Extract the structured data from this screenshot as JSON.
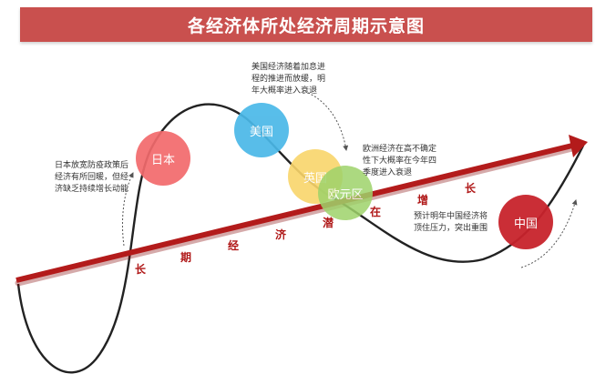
{
  "title": "各经济体所处经济周期示意图",
  "axis_label_chars": [
    "长",
    "期",
    "经",
    "济",
    "潜",
    "在",
    "增",
    "长"
  ],
  "economies": [
    {
      "id": "japan",
      "label": "日本",
      "color": "#f26a6c"
    },
    {
      "id": "usa",
      "label": "美国",
      "color": "#4ab8e8"
    },
    {
      "id": "uk",
      "label": "英国",
      "color": "#f9d56b"
    },
    {
      "id": "eurozone",
      "label": "欧元区",
      "color": "#9ed36a"
    },
    {
      "id": "china",
      "label": "中国",
      "color": "#c8232c"
    }
  ],
  "notes": {
    "japan": "日本放宽防疫政策后\n经济有所回暖，但经\n济缺乏持续增长动能",
    "usa": "美国经济随着加息进\n程的推进而放缓，明\n年大概率进入衰退",
    "europe": "欧洲经济在高不确定\n性下大概率在今年四\n季度进入衰退",
    "china": "预计明年中国经济将\n顶住压力，突出重围"
  },
  "colors": {
    "title_bar": "#c9504e",
    "trend_arrow": "#b31b1b",
    "curve": "#222222"
  }
}
